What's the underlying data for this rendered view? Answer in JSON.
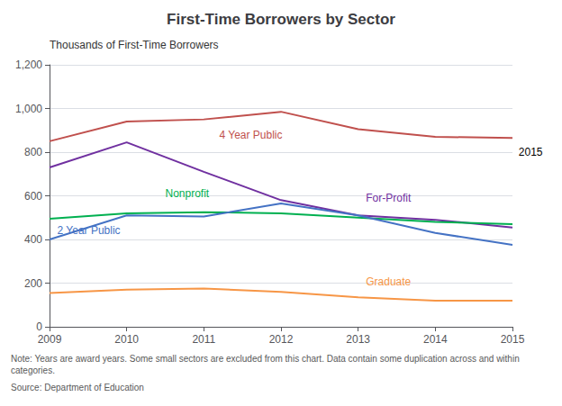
{
  "chart_data": {
    "type": "line",
    "title": "First-Time Borrowers by Sector",
    "ylabel": "Thousands of First-Time Borrowers",
    "x": [
      2009,
      2010,
      2011,
      2012,
      2013,
      2014,
      2015
    ],
    "series": [
      {
        "name": "4 Year Public",
        "color": "#c0504d",
        "values": [
          850,
          940,
          950,
          985,
          905,
          870,
          865
        ]
      },
      {
        "name": "For-Profit",
        "color": "#7030a0",
        "values": [
          730,
          845,
          710,
          580,
          510,
          490,
          455
        ]
      },
      {
        "name": "Nonprofit",
        "color": "#00b050",
        "values": [
          495,
          520,
          525,
          520,
          500,
          480,
          470
        ]
      },
      {
        "name": "2 Year Public",
        "color": "#4472c4",
        "values": [
          400,
          510,
          505,
          565,
          510,
          430,
          375
        ]
      },
      {
        "name": "Graduate",
        "color": "#f79646",
        "values": [
          155,
          170,
          175,
          160,
          135,
          120,
          120
        ]
      }
    ],
    "xlim": [
      2009,
      2015
    ],
    "xticks": [
      2009,
      2010,
      2011,
      2012,
      2013,
      2014,
      2015
    ],
    "ylim": [
      0,
      1200
    ],
    "yticks": [
      0,
      200,
      400,
      600,
      800,
      {
        "value": 1000,
        "label": "1,000"
      },
      {
        "value": 1200,
        "label": "1,200"
      }
    ],
    "grid": true,
    "annotations": [
      {
        "text": "4 Year Public",
        "x": 2011.2,
        "y": 880
      },
      {
        "text": "For-Profit",
        "x": 2013.1,
        "y": 590
      },
      {
        "text": "Nonprofit",
        "x": 2010.5,
        "y": 610
      },
      {
        "text": "2 Year Public",
        "x": 2009.1,
        "y": 440
      },
      {
        "text": "Graduate",
        "x": 2013.1,
        "y": 207
      },
      {
        "text": "2015",
        "x": 2015.08,
        "y": 800
      }
    ],
    "footnotes": [
      "Note: Years are award years. Some small sectors are excluded from this chart. Data contain some duplication across and within categories.",
      "Source: Department of Education"
    ]
  }
}
